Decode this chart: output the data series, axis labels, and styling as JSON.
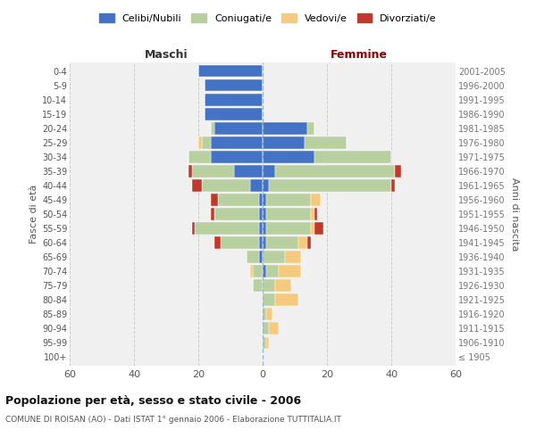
{
  "age_groups": [
    "100+",
    "95-99",
    "90-94",
    "85-89",
    "80-84",
    "75-79",
    "70-74",
    "65-69",
    "60-64",
    "55-59",
    "50-54",
    "45-49",
    "40-44",
    "35-39",
    "30-34",
    "25-29",
    "20-24",
    "15-19",
    "10-14",
    "5-9",
    "0-4"
  ],
  "birth_years": [
    "≤ 1905",
    "1906-1910",
    "1911-1915",
    "1916-1920",
    "1921-1925",
    "1926-1930",
    "1931-1935",
    "1936-1940",
    "1941-1945",
    "1946-1950",
    "1951-1955",
    "1956-1960",
    "1961-1965",
    "1966-1970",
    "1971-1975",
    "1976-1980",
    "1981-1985",
    "1986-1990",
    "1991-1995",
    "1996-2000",
    "2001-2005"
  ],
  "male_celibi": [
    0,
    0,
    0,
    0,
    0,
    0,
    0,
    1,
    1,
    1,
    1,
    1,
    4,
    9,
    16,
    16,
    15,
    18,
    18,
    18,
    20
  ],
  "male_coniugati": [
    0,
    0,
    0,
    0,
    0,
    3,
    3,
    4,
    12,
    20,
    14,
    13,
    15,
    13,
    7,
    3,
    1,
    0,
    0,
    0,
    0
  ],
  "male_vedovi": [
    0,
    0,
    0,
    0,
    0,
    0,
    1,
    0,
    0,
    0,
    0,
    0,
    0,
    0,
    0,
    1,
    0,
    0,
    0,
    0,
    0
  ],
  "male_divorziati": [
    0,
    0,
    0,
    0,
    0,
    0,
    0,
    0,
    2,
    1,
    1,
    2,
    3,
    1,
    0,
    0,
    0,
    0,
    0,
    0,
    0
  ],
  "female_nubili": [
    0,
    0,
    0,
    0,
    0,
    0,
    1,
    0,
    1,
    1,
    1,
    1,
    2,
    4,
    16,
    13,
    14,
    0,
    0,
    0,
    0
  ],
  "female_coniugate": [
    0,
    1,
    2,
    1,
    4,
    4,
    4,
    7,
    10,
    14,
    14,
    14,
    38,
    37,
    24,
    13,
    2,
    0,
    0,
    0,
    0
  ],
  "female_vedove": [
    0,
    1,
    3,
    2,
    7,
    5,
    7,
    5,
    3,
    1,
    1,
    3,
    0,
    0,
    0,
    0,
    0,
    0,
    0,
    0,
    0
  ],
  "female_divorziate": [
    0,
    0,
    0,
    0,
    0,
    0,
    0,
    0,
    1,
    3,
    1,
    0,
    1,
    2,
    0,
    0,
    0,
    0,
    0,
    0,
    0
  ],
  "color_celibi": "#4472c4",
  "color_coniugati": "#b8cfa0",
  "color_vedovi": "#f5c97e",
  "color_divorziati": "#c0392b",
  "xlim": 60,
  "title": "Popolazione per età, sesso e stato civile - 2006",
  "subtitle": "COMUNE DI ROISAN (AO) - Dati ISTAT 1° gennaio 2006 - Elaborazione TUTTITALIA.IT",
  "legend_labels": [
    "Celibi/Nubili",
    "Coniugati/e",
    "Vedovi/e",
    "Divorziati/e"
  ],
  "ylabel_left": "Fasce di età",
  "ylabel_right": "Anni di nascita",
  "label_maschi": "Maschi",
  "label_femmine": "Femmine",
  "bg_plot": "#f0f0f0",
  "bg_fig": "#ffffff",
  "grid_color": "#cccccc"
}
